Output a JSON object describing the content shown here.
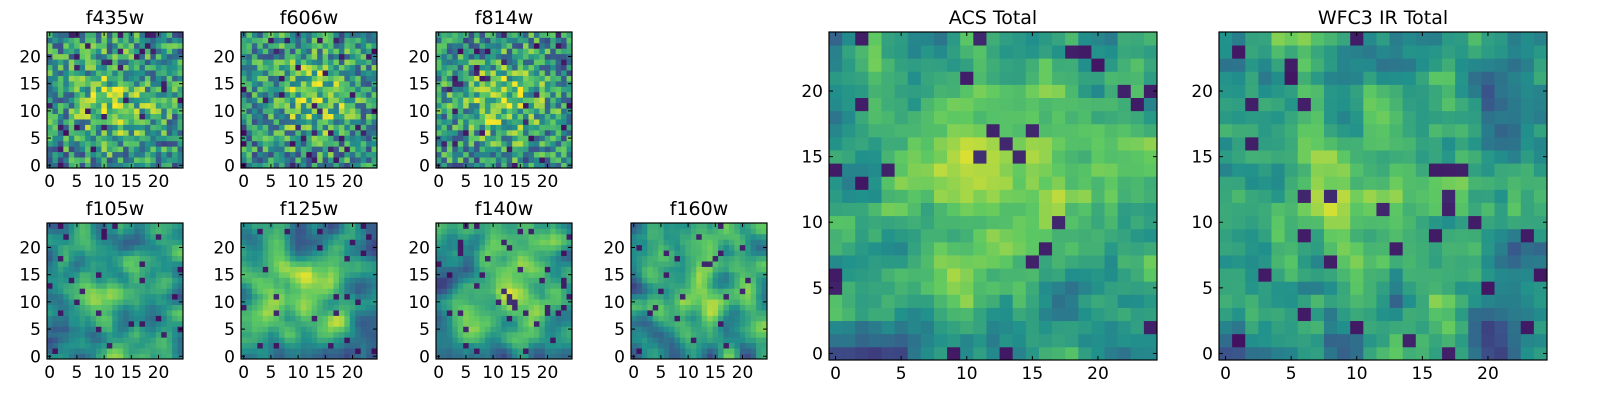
{
  "figure": {
    "background": "#ffffff",
    "colormap": "viridis",
    "colormap_stops": [
      "#440154",
      "#3b528b",
      "#21918c",
      "#5ec962",
      "#fde725"
    ]
  },
  "chart_data": [
    {
      "id": "f435w",
      "type": "heatmap",
      "title": "f435w",
      "grid_size": 25,
      "xlim": [
        0,
        24
      ],
      "ylim": [
        0,
        24
      ],
      "xticks": [
        0,
        5,
        10,
        15,
        20
      ],
      "yticks": [
        0,
        5,
        10,
        15,
        20
      ],
      "grid": false,
      "texture": "speckled",
      "bright_center": [
        12,
        12
      ],
      "seed": 11
    },
    {
      "id": "f606w",
      "type": "heatmap",
      "title": "f606w",
      "grid_size": 25,
      "xlim": [
        0,
        24
      ],
      "ylim": [
        0,
        24
      ],
      "xticks": [
        0,
        5,
        10,
        15,
        20
      ],
      "yticks": [
        0,
        5,
        10,
        15,
        20
      ],
      "grid": false,
      "texture": "speckled",
      "bright_center": [
        13,
        13
      ],
      "seed": 23
    },
    {
      "id": "f814w",
      "type": "heatmap",
      "title": "f814w",
      "grid_size": 25,
      "xlim": [
        0,
        24
      ],
      "ylim": [
        0,
        24
      ],
      "xticks": [
        0,
        5,
        10,
        15,
        20
      ],
      "yticks": [
        0,
        5,
        10,
        15,
        20
      ],
      "grid": false,
      "texture": "speckled",
      "bright_center": [
        12,
        12
      ],
      "seed": 37
    },
    {
      "id": "f105w",
      "type": "heatmap",
      "title": "f105w",
      "grid_size": 25,
      "xlim": [
        0,
        24
      ],
      "ylim": [
        0,
        24
      ],
      "xticks": [
        0,
        5,
        10,
        15,
        20
      ],
      "yticks": [
        0,
        5,
        10,
        15,
        20
      ],
      "grid": false,
      "texture": "smooth",
      "bright_center": [
        11,
        11
      ],
      "seed": 41
    },
    {
      "id": "f125w",
      "type": "heatmap",
      "title": "f125w",
      "grid_size": 25,
      "xlim": [
        0,
        24
      ],
      "ylim": [
        0,
        24
      ],
      "xticks": [
        0,
        5,
        10,
        15,
        20
      ],
      "yticks": [
        0,
        5,
        10,
        15,
        20
      ],
      "grid": false,
      "texture": "smooth",
      "bright_center": [
        12,
        12
      ],
      "seed": 53
    },
    {
      "id": "f140w",
      "type": "heatmap",
      "title": "f140w",
      "grid_size": 25,
      "xlim": [
        0,
        24
      ],
      "ylim": [
        0,
        24
      ],
      "xticks": [
        0,
        5,
        10,
        15,
        20
      ],
      "yticks": [
        0,
        5,
        10,
        15,
        20
      ],
      "grid": false,
      "texture": "smooth",
      "bright_center": [
        14,
        14
      ],
      "seed": 67
    },
    {
      "id": "f160w",
      "type": "heatmap",
      "title": "f160w",
      "grid_size": 25,
      "xlim": [
        0,
        24
      ],
      "ylim": [
        0,
        24
      ],
      "xticks": [
        0,
        5,
        10,
        15,
        20
      ],
      "yticks": [
        0,
        5,
        10,
        15,
        20
      ],
      "grid": false,
      "texture": "smooth",
      "bright_center": [
        12,
        12
      ],
      "seed": 79
    },
    {
      "id": "acs-total",
      "type": "heatmap",
      "title": "ACS Total",
      "grid_size": 25,
      "xlim": [
        0,
        24
      ],
      "ylim": [
        0,
        24
      ],
      "xticks": [
        0,
        5,
        10,
        15,
        20
      ],
      "yticks": [
        0,
        5,
        10,
        15,
        20
      ],
      "grid": false,
      "texture": "blocky",
      "bright_center": [
        12,
        15
      ],
      "seed": 97
    },
    {
      "id": "wfc3-ir-total",
      "type": "heatmap",
      "title": "WFC3 IR Total",
      "grid_size": 25,
      "xlim": [
        0,
        24
      ],
      "ylim": [
        0,
        24
      ],
      "xticks": [
        0,
        5,
        10,
        15,
        20
      ],
      "yticks": [
        0,
        5,
        10,
        15,
        20
      ],
      "grid": false,
      "texture": "blocky",
      "bright_center": [
        12,
        12
      ],
      "seed": 131
    }
  ]
}
